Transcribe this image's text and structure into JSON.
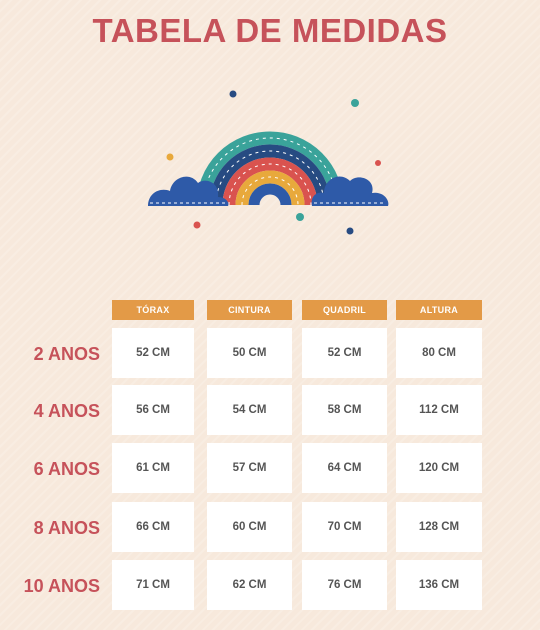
{
  "title": "TABELA DE MEDIDAS",
  "illustration": "rainbow-clouds-icon",
  "colors": {
    "title": "#c6525a",
    "header": "#e39a47",
    "background": "#f7e9dc",
    "rainbow_teal": "#3aa39a",
    "rainbow_navy": "#274b82",
    "rainbow_red": "#d9534f",
    "rainbow_yellow": "#e8a93c",
    "rainbow_blue": "#2e5aa8"
  },
  "table": {
    "headers": [
      "TÓRAX",
      "CINTURA",
      "QUADRIL",
      "ALTURA"
    ],
    "rows": [
      {
        "label": "2 ANOS",
        "values": [
          "52 CM",
          "50 CM",
          "52 CM",
          "80 CM"
        ]
      },
      {
        "label": "4 ANOS",
        "values": [
          "56 CM",
          "54 CM",
          "58 CM",
          "112 CM"
        ]
      },
      {
        "label": "6 ANOS",
        "values": [
          "61 CM",
          "57 CM",
          "64 CM",
          "120 CM"
        ]
      },
      {
        "label": "8 ANOS",
        "values": [
          "66 CM",
          "60 CM",
          "70 CM",
          "128 CM"
        ]
      },
      {
        "label": "10 ANOS",
        "values": [
          "71 CM",
          "62 CM",
          "76 CM",
          "136 CM"
        ]
      }
    ]
  }
}
